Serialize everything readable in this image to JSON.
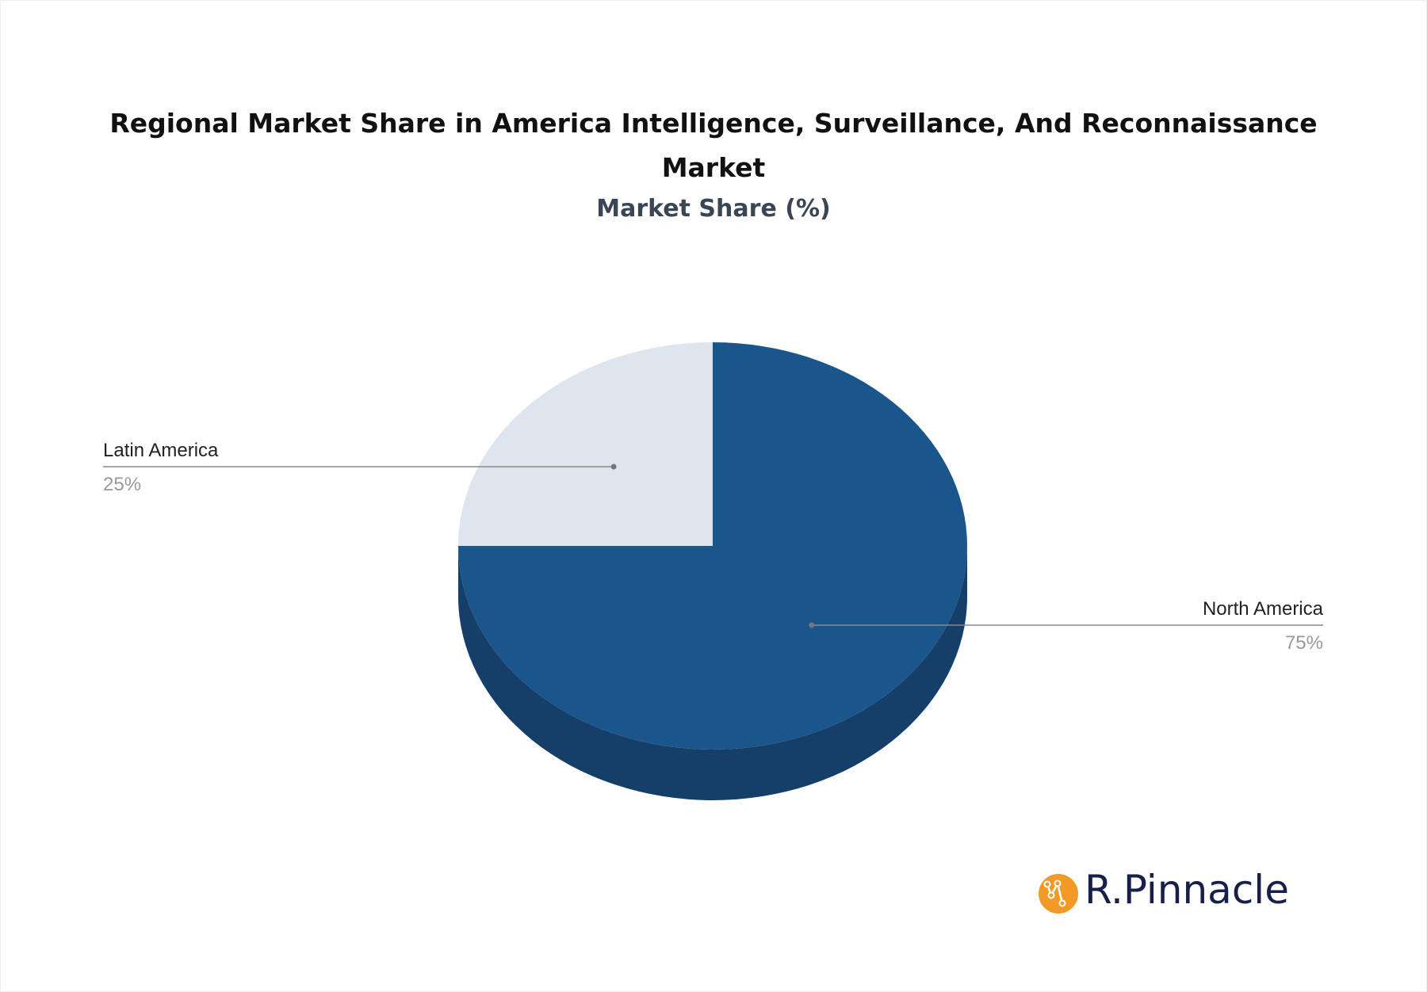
{
  "chart_data": {
    "type": "pie",
    "title": "Regional Market Share in America Intelligence, Surveillance, And Reconnaissance Market",
    "subtitle": "Market Share (%)",
    "slices": [
      {
        "label": "North America",
        "value": 75,
        "value_label": "75%",
        "color": "#1a568b",
        "side_color": "#153f68"
      },
      {
        "label": "Latin America",
        "value": 25,
        "value_label": "25%",
        "color": "#dde5ef",
        "side_color": "#b9c3cf"
      }
    ],
    "style": "3d"
  },
  "brand": {
    "name": "R.Pinnacle",
    "icon_color": "#f39a26"
  }
}
